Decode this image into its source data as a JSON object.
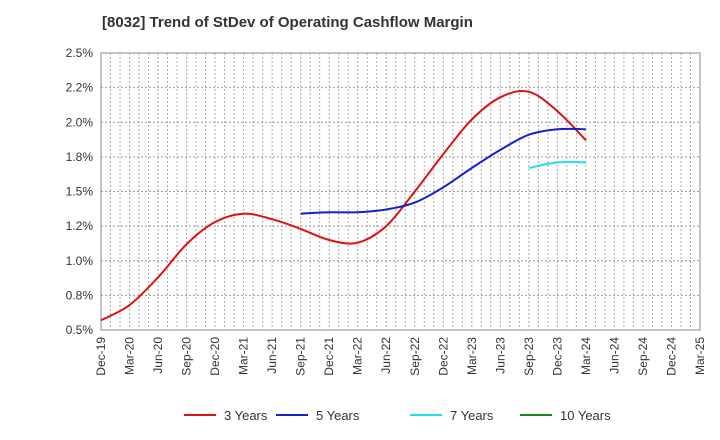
{
  "chart_data": {
    "type": "line",
    "title": "[8032]  Trend of StDev of Operating Cashflow Margin",
    "xlabel": "",
    "ylabel": "",
    "ylim": [
      0.5,
      2.5
    ],
    "y_ticks": [
      "0.5%",
      "0.8%",
      "1.0%",
      "1.2%",
      "1.5%",
      "1.8%",
      "2.0%",
      "2.2%",
      "2.5%"
    ],
    "categories": [
      "Dec-19",
      "Mar-20",
      "Jun-20",
      "Sep-20",
      "Dec-20",
      "Mar-21",
      "Jun-21",
      "Sep-21",
      "Dec-21",
      "Mar-22",
      "Jun-22",
      "Sep-22",
      "Dec-22",
      "Mar-23",
      "Jun-23",
      "Sep-23",
      "Dec-23",
      "Mar-24",
      "Jun-24",
      "Sep-24",
      "Dec-24",
      "Mar-25"
    ],
    "grid": true,
    "legend_position": "bottom",
    "series": [
      {
        "name": "3 Years",
        "color": "#dd1111",
        "values": [
          0.57,
          0.68,
          0.88,
          1.12,
          1.28,
          1.34,
          1.3,
          1.23,
          1.15,
          1.13,
          1.25,
          1.5,
          1.77,
          2.02,
          2.18,
          2.22,
          2.08,
          1.87,
          null,
          null,
          null,
          null
        ]
      },
      {
        "name": "5 Years",
        "color": "#1122cc",
        "values": [
          null,
          null,
          null,
          null,
          null,
          null,
          null,
          1.34,
          1.35,
          1.35,
          1.37,
          1.42,
          1.53,
          1.67,
          1.8,
          1.91,
          1.95,
          1.95,
          null,
          null,
          null,
          null
        ]
      },
      {
        "name": "7 Years",
        "color": "#22ddee",
        "values": [
          null,
          null,
          null,
          null,
          null,
          null,
          null,
          null,
          null,
          null,
          null,
          null,
          null,
          null,
          null,
          1.67,
          1.71,
          1.71,
          null,
          null,
          null,
          null
        ]
      },
      {
        "name": "10 Years",
        "color": "#118811",
        "values": [
          null,
          null,
          null,
          null,
          null,
          null,
          null,
          null,
          null,
          null,
          null,
          null,
          null,
          null,
          null,
          null,
          null,
          null,
          null,
          null,
          null,
          null
        ]
      }
    ]
  }
}
